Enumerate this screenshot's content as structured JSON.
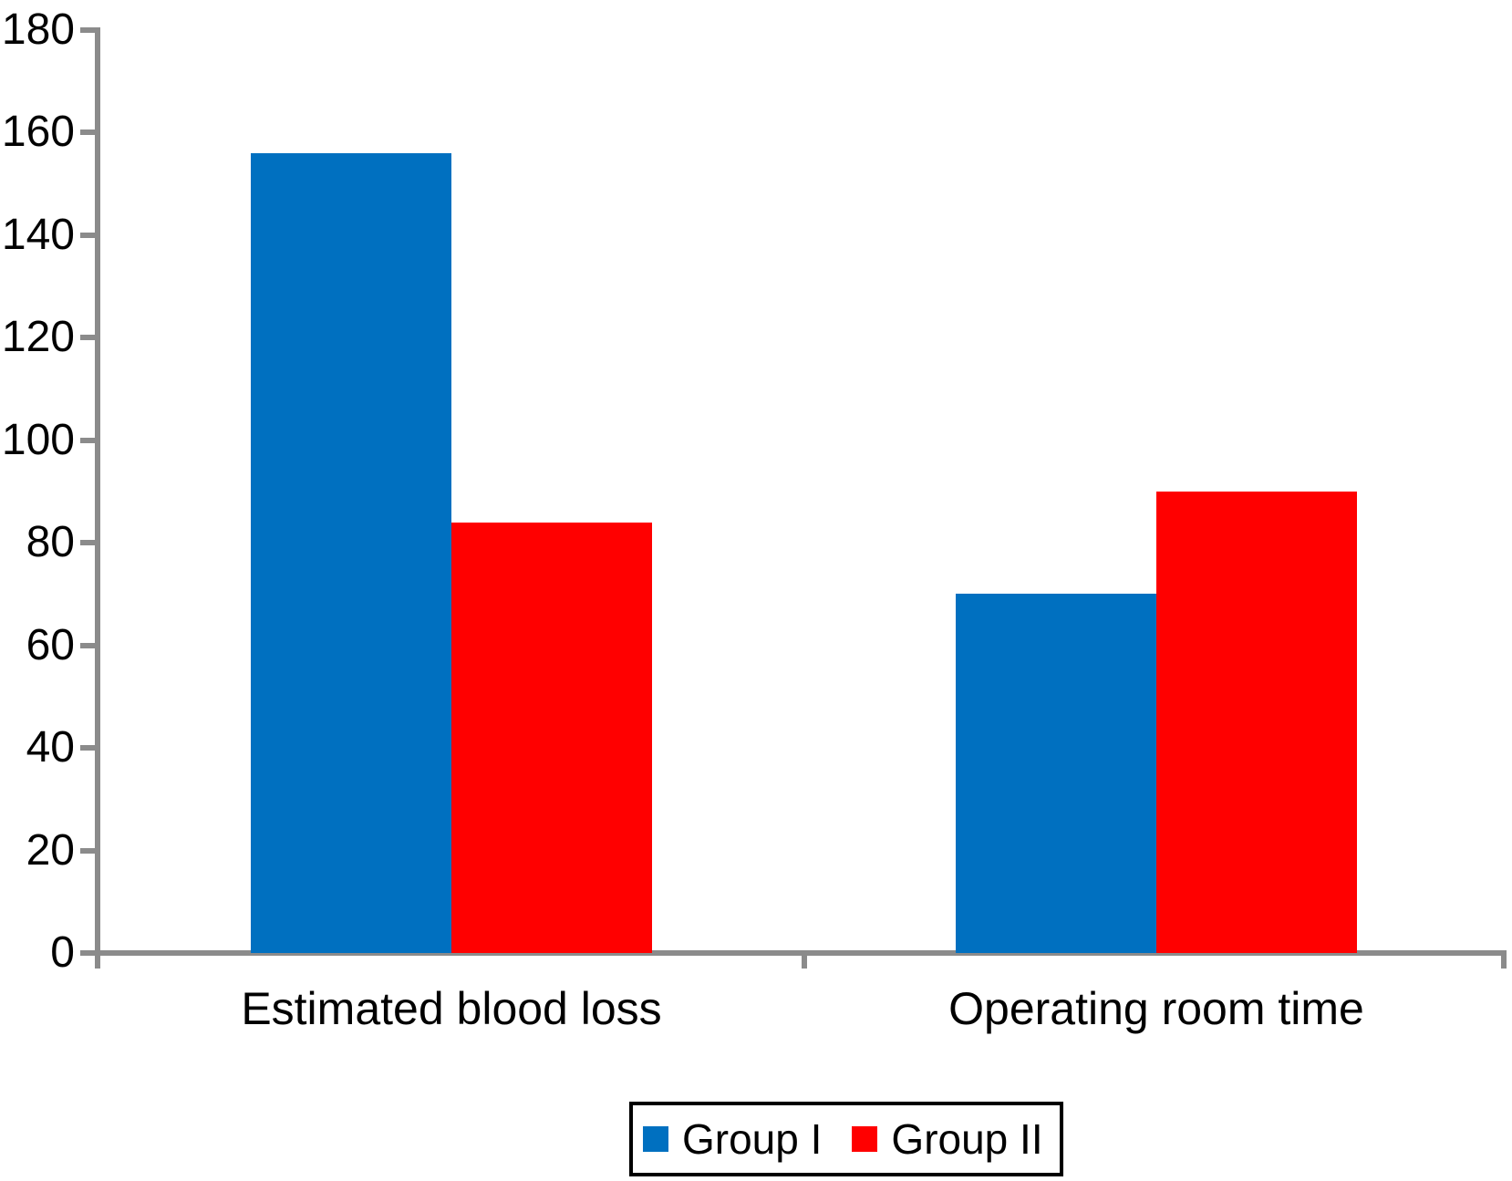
{
  "chart_data": {
    "type": "bar",
    "title": "",
    "xlabel": "",
    "ylabel": "",
    "categories": [
      "Estimated blood loss",
      "Operating room time"
    ],
    "series": [
      {
        "name": "Group I",
        "color": "#0070C0",
        "values": [
          156,
          70
        ]
      },
      {
        "name": "Group II",
        "color": "#FF0000",
        "values": [
          84,
          90
        ]
      }
    ],
    "ylim": [
      0,
      180
    ],
    "ytick_step": 20,
    "yticks": [
      0,
      20,
      40,
      60,
      80,
      100,
      120,
      140,
      160,
      180
    ],
    "grid": false,
    "legend_position": "bottom-center",
    "axis_color": "#8b8b8b",
    "background_color": "#ffffff",
    "text_color": "#000000"
  }
}
